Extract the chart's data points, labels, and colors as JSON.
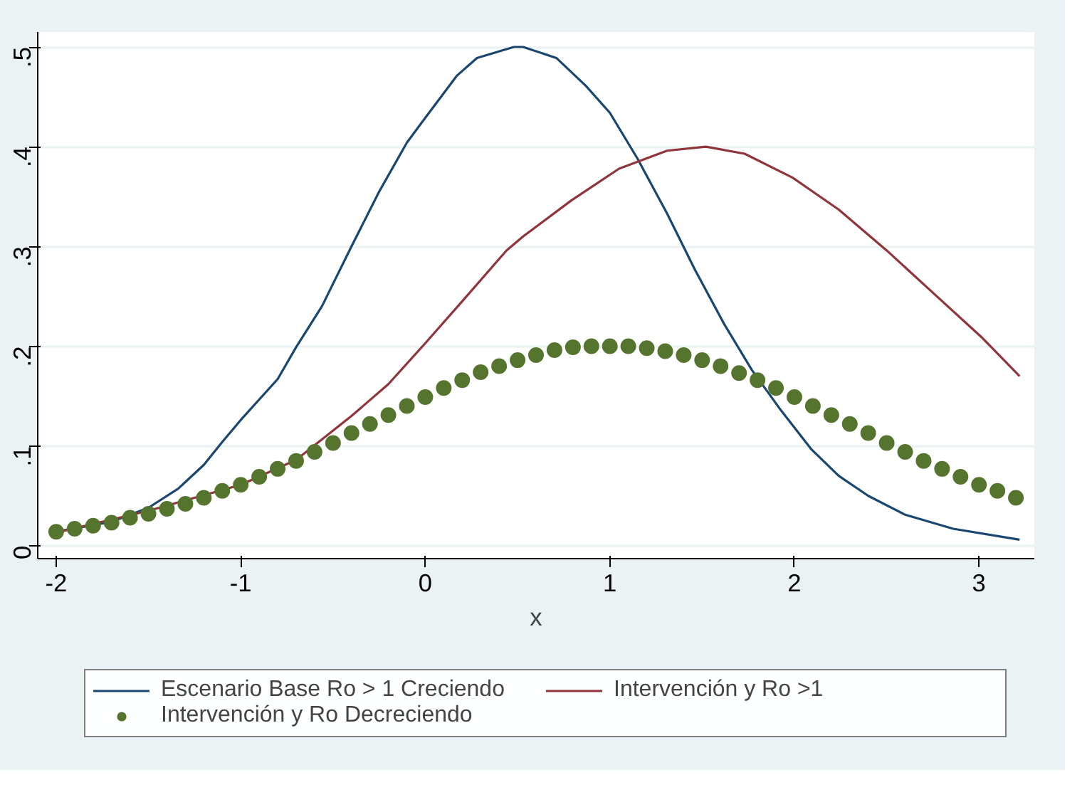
{
  "chart_data": {
    "type": "line",
    "xlabel": "x",
    "xlim": [
      -2.1,
      3.3
    ],
    "ylim": [
      -0.013,
      0.515
    ],
    "xticks": [
      -2,
      -1,
      0,
      1,
      2,
      3
    ],
    "yticks": [
      {
        "value": 0,
        "label": "0"
      },
      {
        "value": 0.1,
        "label": ".1"
      },
      {
        "value": 0.2,
        "label": ".2"
      },
      {
        "value": 0.3,
        "label": ".3"
      },
      {
        "value": 0.4,
        "label": ".4"
      },
      {
        "value": 0.5,
        "label": ".5"
      }
    ],
    "grid": "y",
    "legend": "bottom",
    "series": [
      {
        "name": "Escenario Base Ro > 1 Creciendo",
        "color": "#1a476f",
        "x": [
          -2,
          -1.7,
          -1.5,
          -1.34,
          -1.2,
          -1.1,
          -1,
          -0.8,
          -0.7,
          -0.56,
          -0.4,
          -0.25,
          -0.1,
          0,
          0.17,
          0.28,
          0.48,
          0.53,
          0.71,
          0.87,
          1,
          1.15,
          1.31,
          1.46,
          1.62,
          1.77,
          1.93,
          2.09,
          2.24,
          2.4,
          2.6,
          2.86,
          3.22
        ],
        "values": [
          0.014,
          0.024,
          0.038,
          0.057,
          0.081,
          0.104,
          0.126,
          0.167,
          0.199,
          0.24,
          0.3,
          0.355,
          0.404,
          0.429,
          0.471,
          0.489,
          0.5,
          0.5,
          0.489,
          0.461,
          0.434,
          0.388,
          0.333,
          0.277,
          0.222,
          0.176,
          0.135,
          0.097,
          0.07,
          0.05,
          0.031,
          0.017,
          0.006
        ]
      },
      {
        "name": "Intervención y Ro >1",
        "color": "#90353b",
        "x": [
          -2,
          -1.5,
          -1,
          -0.7,
          -0.4,
          -0.2,
          0,
          0.2,
          0.44,
          0.53,
          0.79,
          1.05,
          1.31,
          1.52,
          1.73,
          1.99,
          2.24,
          2.5,
          2.76,
          3.02,
          3.22
        ],
        "values": [
          0.013,
          0.035,
          0.061,
          0.086,
          0.13,
          0.162,
          0.203,
          0.245,
          0.296,
          0.31,
          0.346,
          0.378,
          0.396,
          0.4,
          0.393,
          0.369,
          0.337,
          0.296,
          0.252,
          0.208,
          0.17
        ]
      },
      {
        "name": "Intervención y Ro Decreciendo",
        "type": "scatter",
        "marker": "circle",
        "color": "#55752f",
        "x": [
          -2,
          -1.9,
          -1.8,
          -1.7,
          -1.6,
          -1.5,
          -1.4,
          -1.3,
          -1.2,
          -1.1,
          -1,
          -0.9,
          -0.8,
          -0.7,
          -0.6,
          -0.5,
          -0.4,
          -0.3,
          -0.2,
          -0.1,
          0,
          0.1,
          0.2,
          0.3,
          0.4,
          0.5,
          0.6,
          0.7,
          0.8,
          0.9,
          1,
          1.1,
          1.2,
          1.3,
          1.4,
          1.5,
          1.6,
          1.7,
          1.8,
          1.9,
          2,
          2.1,
          2.2,
          2.3,
          2.4,
          2.5,
          2.6,
          2.7,
          2.8,
          2.9,
          3,
          3.1,
          3.2
        ],
        "values": [
          0.014,
          0.017,
          0.02,
          0.023,
          0.028,
          0.032,
          0.037,
          0.042,
          0.048,
          0.055,
          0.061,
          0.069,
          0.077,
          0.085,
          0.094,
          0.103,
          0.113,
          0.122,
          0.131,
          0.14,
          0.149,
          0.158,
          0.166,
          0.174,
          0.18,
          0.186,
          0.191,
          0.196,
          0.199,
          0.2,
          0.2,
          0.2,
          0.198,
          0.195,
          0.191,
          0.186,
          0.18,
          0.173,
          0.166,
          0.158,
          0.149,
          0.14,
          0.131,
          0.122,
          0.113,
          0.103,
          0.094,
          0.085,
          0.077,
          0.069,
          0.061,
          0.055,
          0.048
        ]
      }
    ]
  }
}
